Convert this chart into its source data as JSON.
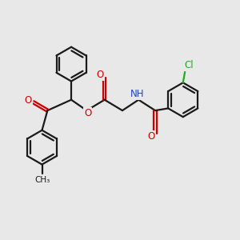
{
  "background_color": "#e8e8e8",
  "bond_color": "#1a1a1a",
  "oxygen_color": "#cc0000",
  "nitrogen_color": "#2244bb",
  "chlorine_color": "#22aa22",
  "lw": 1.6,
  "fs": 8.5,
  "r": 0.72,
  "xlim": [
    0,
    10
  ],
  "ylim": [
    0,
    10
  ]
}
